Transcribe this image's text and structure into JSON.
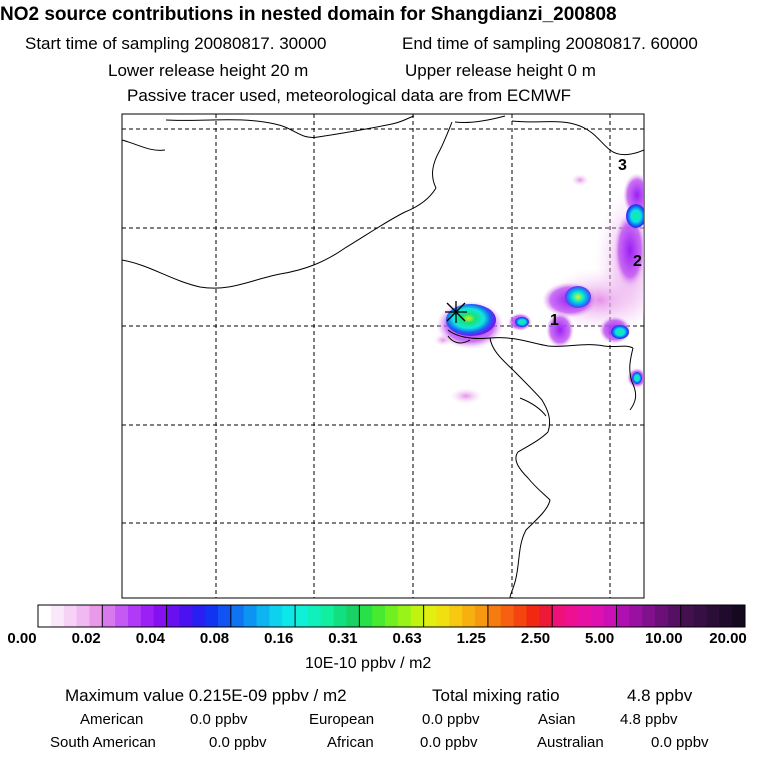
{
  "header": {
    "title": "NO2 source contributions in nested domain for Shangdianzi_200808",
    "start_label": "Start time of sampling 20080817. 30000",
    "end_label": "End time of sampling 20080817. 60000",
    "lower_label": "Lower release height   20 m",
    "upper_label": "Upper release height    0 m",
    "tracer_note": "Passive tracer used, meteorological data are from ECMWF"
  },
  "map": {
    "region_labels": [
      "1",
      "2",
      "3"
    ]
  },
  "legend": {
    "ticks": [
      "0.00",
      "0.02",
      "0.04",
      "0.08",
      "0.16",
      "0.31",
      "0.63",
      "1.25",
      "2.50",
      "5.00",
      "10.00",
      "20.00"
    ],
    "unit": "10E-10 ppbv / m2",
    "colors": [
      [
        "#ffffff",
        "#fbe8fb",
        "#f7d2f7",
        "#f1b9f1",
        "#e89ae8"
      ],
      [
        "#d879ee",
        "#c559f3",
        "#b13af6",
        "#9c1ff6",
        "#8510f0"
      ],
      [
        "#6a0ff0",
        "#4a12f0",
        "#2a1ff2",
        "#1234f2",
        "#1052f2"
      ],
      [
        "#0f74f2",
        "#0d94f2",
        "#0cb4f0",
        "#0cd2ee",
        "#0ce8ea"
      ],
      [
        "#10f0d8",
        "#10f0bc",
        "#10f09e",
        "#10e080",
        "#18d264"
      ],
      [
        "#28e048",
        "#48ea30",
        "#70f020",
        "#98f418",
        "#c0f410"
      ],
      [
        "#e0ee10",
        "#f0e010",
        "#f6c810",
        "#f6b010",
        "#f69810"
      ],
      [
        "#f67c10",
        "#f66010",
        "#f44410",
        "#f22810",
        "#ee1838"
      ],
      [
        "#f0107a",
        "#ee1090",
        "#e810a4",
        "#de10b0",
        "#cc10b8"
      ],
      [
        "#b010b0",
        "#9a10a0",
        "#80108c",
        "#6a1078",
        "#551064"
      ],
      [
        "#441050",
        "#380f44",
        "#2c0d38",
        "#200b2c",
        "#150820"
      ]
    ]
  },
  "summary": {
    "max_label": "Maximum value  0.215E-09 ppbv / m2",
    "total_label": "Total mixing ratio",
    "total_value": "4.8 ppbv",
    "regions": [
      {
        "name": "American",
        "value": "0.0 ppbv"
      },
      {
        "name": "European",
        "value": "0.0 ppbv"
      },
      {
        "name": "Asian",
        "value": "4.8 ppbv"
      },
      {
        "name": "South American",
        "value": "0.0 ppbv"
      },
      {
        "name": "African",
        "value": "0.0 ppbv"
      },
      {
        "name": "Australian",
        "value": "0.0 ppbv"
      }
    ]
  }
}
